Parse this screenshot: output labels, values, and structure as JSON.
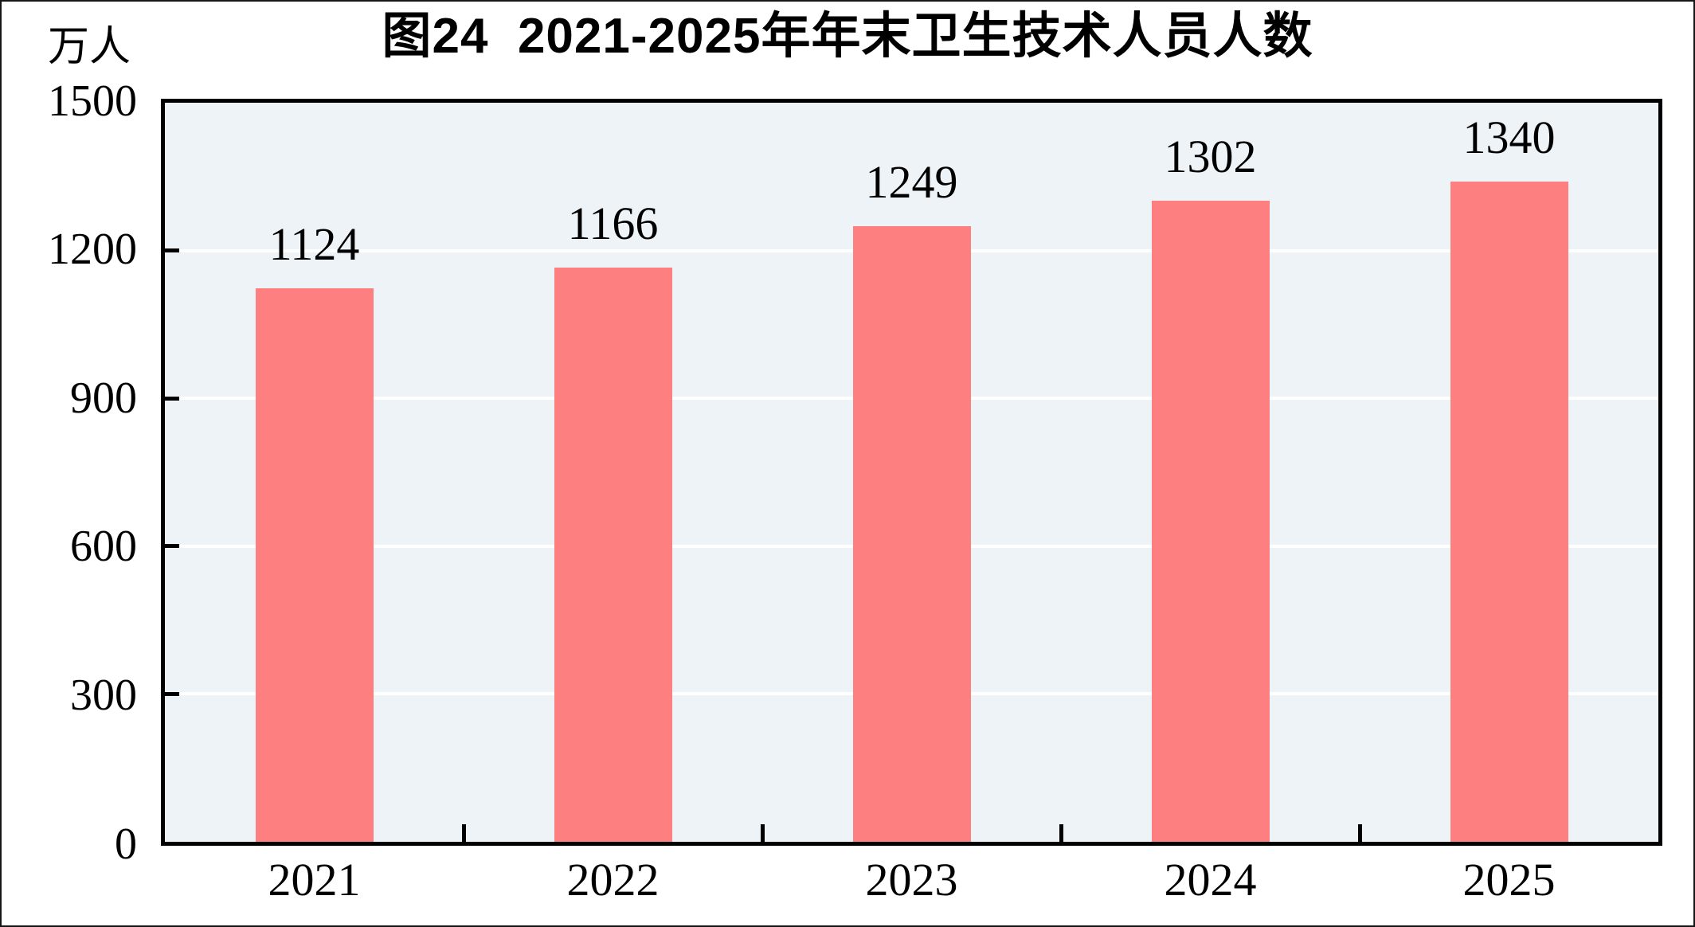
{
  "chart_data": {
    "type": "bar",
    "title": "图24  2021-2025年年末卫生技术人员人数",
    "unit_label": "万人",
    "categories": [
      "2021",
      "2022",
      "2023",
      "2024",
      "2025"
    ],
    "values": [
      1124,
      1166,
      1249,
      1302,
      1340
    ],
    "xlabel": "",
    "ylabel": "万人",
    "ylim": [
      0,
      1500
    ],
    "yticks": [
      0,
      300,
      600,
      900,
      1200,
      1500
    ],
    "grid": "horizontal",
    "legend": "none",
    "colors": {
      "bar_fill": "#fd7f7f",
      "plot_background": "#edf3f7",
      "gridline": "#ffffff",
      "axis_and_text": "#000000",
      "outer_border": "#161616"
    }
  }
}
